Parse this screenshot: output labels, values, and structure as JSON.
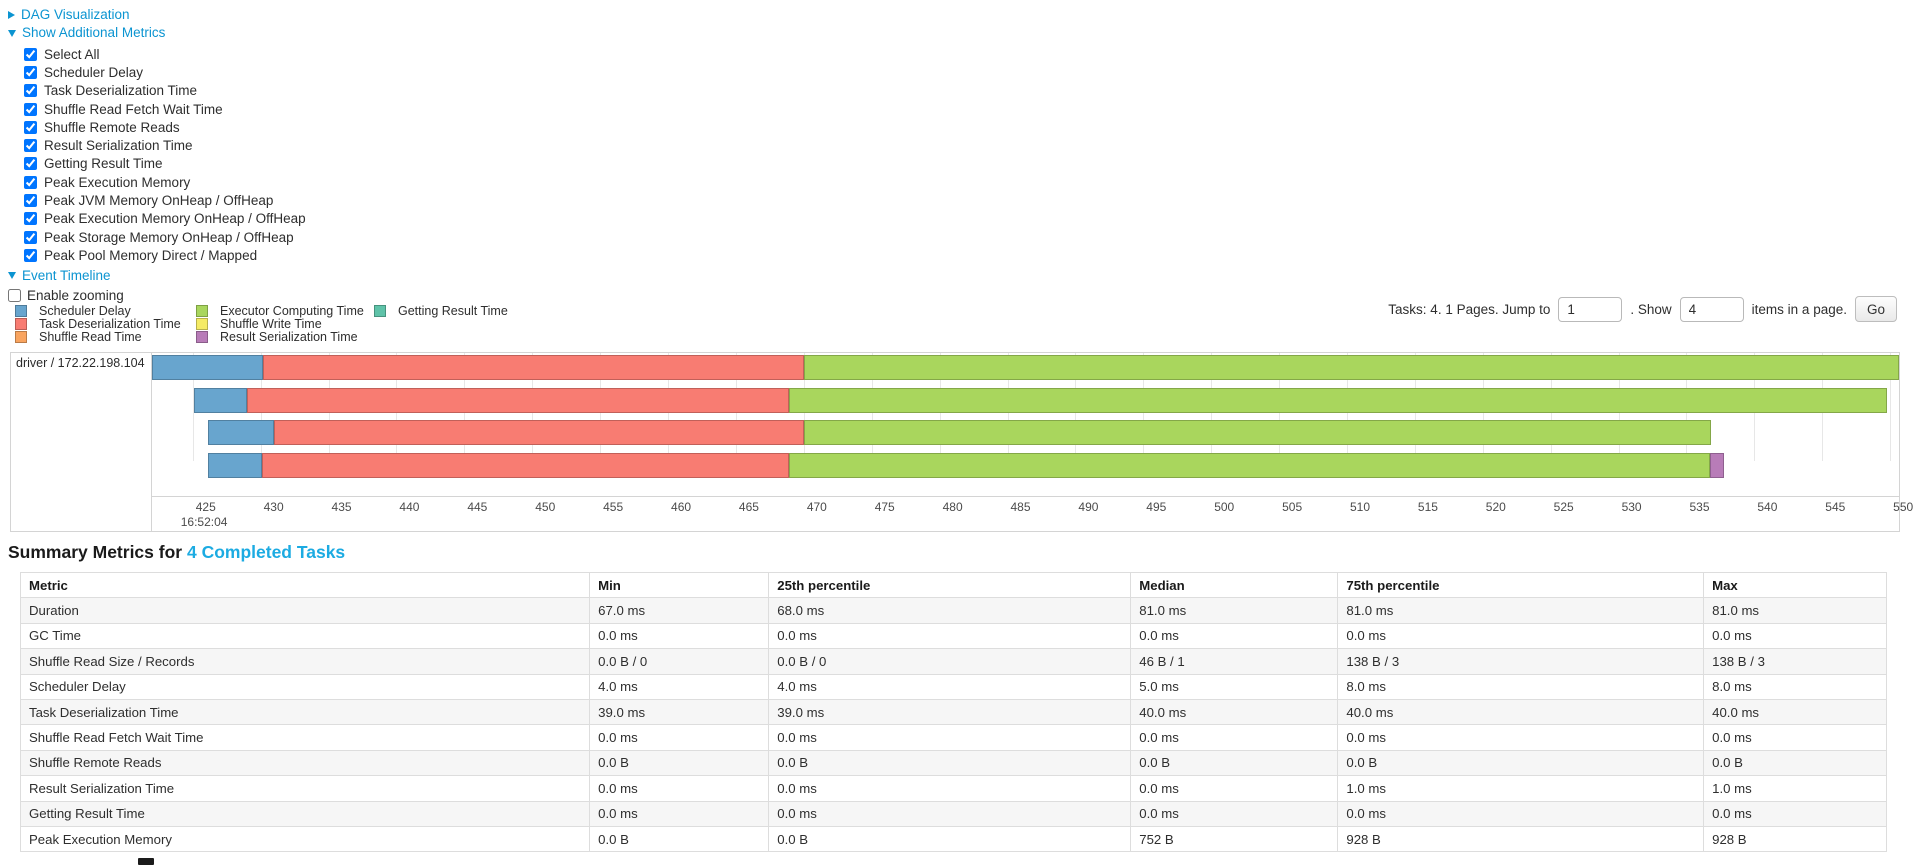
{
  "colors": {
    "link": "#0b94d1",
    "heading_link": "#1cabe2",
    "scheduler_delay": "#68A5CE",
    "task_deserialization": "#F87C72",
    "shuffle_read": "#F9A45F",
    "executor_computing": "#A9D65D",
    "shuffle_write": "#F5EB64",
    "result_serialization": "#B87CB8",
    "getting_result": "#5FC3A9"
  },
  "toggles": {
    "dag": {
      "label": "DAG Visualization",
      "state": "collapsed"
    },
    "additional_metrics": {
      "label": "Show Additional Metrics",
      "state": "expanded"
    },
    "event_timeline": {
      "label": "Event Timeline",
      "state": "expanded"
    }
  },
  "additional_metrics": {
    "items": [
      {
        "label": "Select All",
        "checked": true
      },
      {
        "label": "Scheduler Delay",
        "checked": true
      },
      {
        "label": "Task Deserialization Time",
        "checked": true
      },
      {
        "label": "Shuffle Read Fetch Wait Time",
        "checked": true
      },
      {
        "label": "Shuffle Remote Reads",
        "checked": true
      },
      {
        "label": "Result Serialization Time",
        "checked": true
      },
      {
        "label": "Getting Result Time",
        "checked": true
      },
      {
        "label": "Peak Execution Memory",
        "checked": true
      },
      {
        "label": "Peak JVM Memory OnHeap / OffHeap",
        "checked": true
      },
      {
        "label": "Peak Execution Memory OnHeap / OffHeap",
        "checked": true
      },
      {
        "label": "Peak Storage Memory OnHeap / OffHeap",
        "checked": true
      },
      {
        "label": "Peak Pool Memory Direct / Mapped",
        "checked": true
      }
    ]
  },
  "enable_zooming": {
    "label": "Enable zooming",
    "checked": false
  },
  "legend": {
    "columns": [
      [
        {
          "label": "Scheduler Delay",
          "color_key": "scheduler_delay"
        },
        {
          "label": "Task Deserialization Time",
          "color_key": "task_deserialization"
        },
        {
          "label": "Shuffle Read Time",
          "color_key": "shuffle_read"
        }
      ],
      [
        {
          "label": "Executor Computing Time",
          "color_key": "executor_computing"
        },
        {
          "label": "Shuffle Write Time",
          "color_key": "shuffle_write"
        },
        {
          "label": "Result Serialization Time",
          "color_key": "result_serialization"
        }
      ],
      [
        {
          "label": "Getting Result Time",
          "color_key": "getting_result"
        }
      ]
    ]
  },
  "pagination": {
    "prefix": "Tasks: 4. 1 Pages. Jump to",
    "jump_value": "1",
    "mid": ". Show",
    "show_value": "4",
    "suffix": "items in a page.",
    "go_label": "Go"
  },
  "chart_data": {
    "type": "timeline",
    "row_label": "driver / 172.22.198.104",
    "axis": {
      "min": 422.0,
      "max": 550.65,
      "ticks": [
        425,
        430,
        435,
        440,
        445,
        450,
        455,
        460,
        465,
        470,
        475,
        480,
        485,
        490,
        495,
        500,
        505,
        510,
        515,
        520,
        525,
        530,
        535,
        540,
        545,
        550
      ],
      "major_tick_at": 425,
      "major_tick_label": "16:52:04"
    },
    "tasks": [
      {
        "segments": [
          {
            "metric": "scheduler_delay",
            "start": 422.0,
            "end": 430.2
          },
          {
            "metric": "task_deserialization",
            "start": 430.2,
            "end": 470.0
          },
          {
            "metric": "executor_computing",
            "start": 470.0,
            "end": 550.65
          }
        ]
      },
      {
        "segments": [
          {
            "metric": "scheduler_delay",
            "start": 425.1,
            "end": 429.0
          },
          {
            "metric": "task_deserialization",
            "start": 429.0,
            "end": 468.9
          },
          {
            "metric": "executor_computing",
            "start": 468.9,
            "end": 549.8
          }
        ]
      },
      {
        "segments": [
          {
            "metric": "scheduler_delay",
            "start": 426.1,
            "end": 431.0
          },
          {
            "metric": "task_deserialization",
            "start": 431.0,
            "end": 470.0
          },
          {
            "metric": "executor_computing",
            "start": 470.0,
            "end": 536.8
          }
        ]
      },
      {
        "segments": [
          {
            "metric": "scheduler_delay",
            "start": 426.1,
            "end": 430.1
          },
          {
            "metric": "task_deserialization",
            "start": 430.1,
            "end": 468.9
          },
          {
            "metric": "executor_computing",
            "start": 468.9,
            "end": 536.7
          },
          {
            "metric": "result_serialization",
            "start": 536.7,
            "end": 537.8
          }
        ]
      }
    ]
  },
  "summary": {
    "heading_prefix": "Summary Metrics for",
    "heading_link": "4 Completed Tasks",
    "table": {
      "headers": [
        "Metric",
        "Min",
        "25th percentile",
        "Median",
        "75th percentile",
        "Max"
      ],
      "rows": [
        [
          "Duration",
          "67.0 ms",
          "68.0 ms",
          "81.0 ms",
          "81.0 ms",
          "81.0 ms"
        ],
        [
          "GC Time",
          "0.0 ms",
          "0.0 ms",
          "0.0 ms",
          "0.0 ms",
          "0.0 ms"
        ],
        [
          "Shuffle Read Size / Records",
          "0.0 B / 0",
          "0.0 B / 0",
          "46 B / 1",
          "138 B / 3",
          "138 B / 3"
        ],
        [
          "Scheduler Delay",
          "4.0 ms",
          "4.0 ms",
          "5.0 ms",
          "8.0 ms",
          "8.0 ms"
        ],
        [
          "Task Deserialization Time",
          "39.0 ms",
          "39.0 ms",
          "40.0 ms",
          "40.0 ms",
          "40.0 ms"
        ],
        [
          "Shuffle Read Fetch Wait Time",
          "0.0 ms",
          "0.0 ms",
          "0.0 ms",
          "0.0 ms",
          "0.0 ms"
        ],
        [
          "Shuffle Remote Reads",
          "0.0 B",
          "0.0 B",
          "0.0 B",
          "0.0 B",
          "0.0 B"
        ],
        [
          "Result Serialization Time",
          "0.0 ms",
          "0.0 ms",
          "0.0 ms",
          "1.0 ms",
          "1.0 ms"
        ],
        [
          "Getting Result Time",
          "0.0 ms",
          "0.0 ms",
          "0.0 ms",
          "0.0 ms",
          "0.0 ms"
        ],
        [
          "Peak Execution Memory",
          "0.0 B",
          "0.0 B",
          "752 B",
          "928 B",
          "928 B"
        ]
      ]
    }
  }
}
